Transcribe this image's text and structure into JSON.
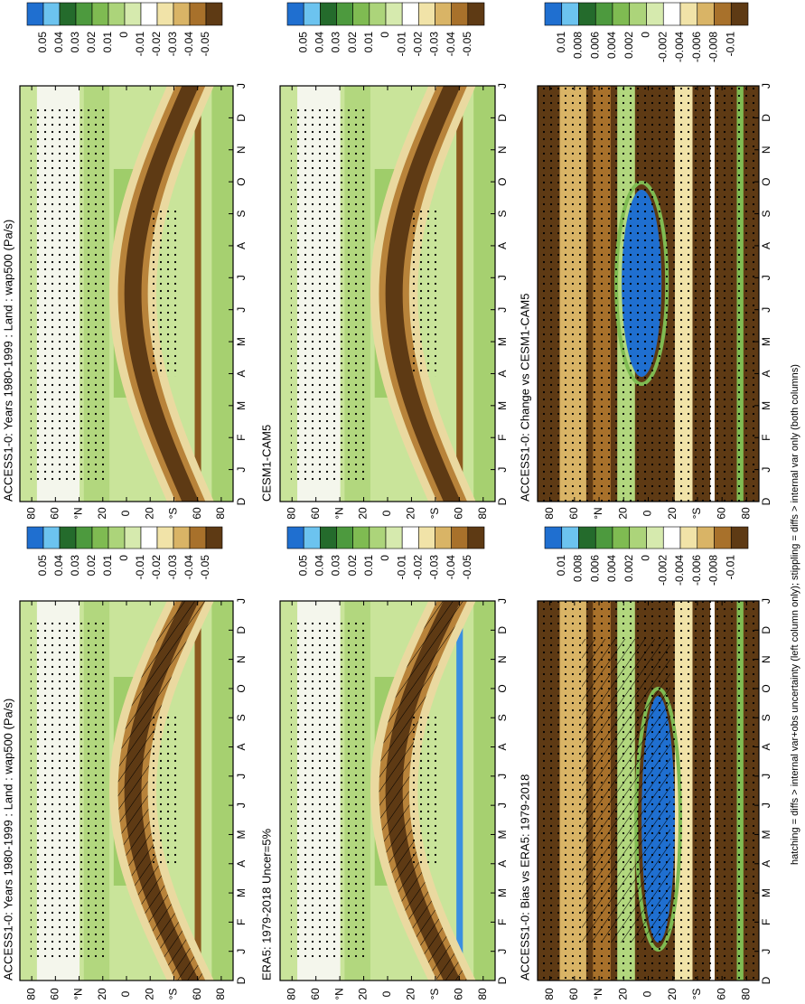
{
  "panels": [
    {
      "title": "ACCESS1-0: Years 1980-1999 : Land : wap500 (Pa/s)"
    },
    {
      "title": "ACCESS1-0: Years 1980-1999 : Land : wap500 (Pa/s)"
    },
    {
      "title": "ERA5: 1979-2018 Uncer=5%"
    },
    {
      "title": "CESM1-CAM5"
    },
    {
      "title": "ACCESS1-0: Bias vs ERA5: 1979-2018"
    },
    {
      "title": "ACCESS1-0: Change vs CESM1-CAM5"
    }
  ],
  "latitude_labels": [
    "80",
    "60",
    "°N",
    "20",
    "0",
    "20",
    "°S",
    "60",
    "80"
  ],
  "month_labels": [
    "D",
    "J",
    "F",
    "M",
    "A",
    "M",
    "J",
    "J",
    "A",
    "S",
    "O",
    "N",
    "D",
    "J"
  ],
  "colorbar_labels": {
    "fields": [
      "0.05",
      "0.04",
      "0.03",
      "0.02",
      "0.01",
      "0",
      "-0.01",
      "-0.02",
      "-0.03",
      "-0.04",
      "-0.05"
    ],
    "differences": [
      "0.01",
      "0.008",
      "0.006",
      "0.004",
      "0.002",
      "0",
      "-0.002",
      "-0.004",
      "-0.006",
      "-0.008",
      "-0.01"
    ]
  },
  "footer": "hatching = diffs > internal var+obs uncertainty (left column only); stippling = diffs > internal var only (both columns)"
}
